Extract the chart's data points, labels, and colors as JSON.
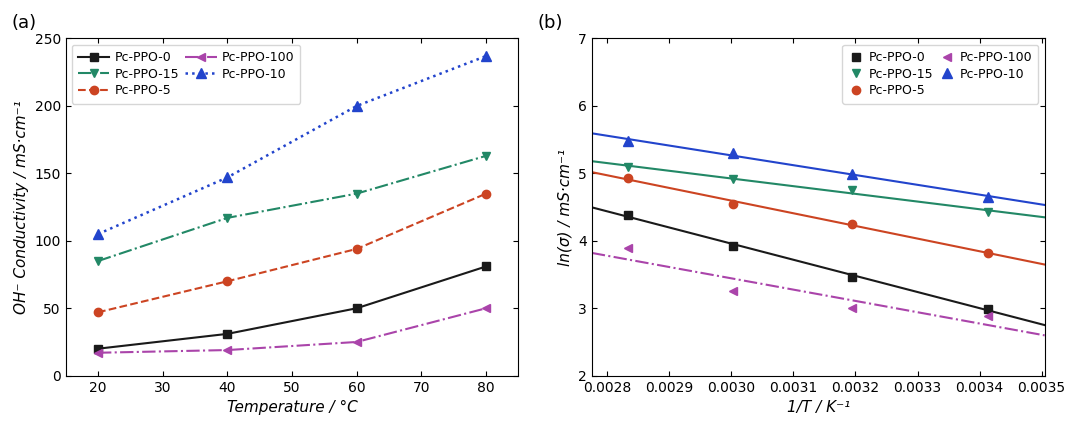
{
  "panel_a": {
    "xlabel": "Temperature / °C",
    "ylabel": "OH⁻ Conductivity / mS·cm⁻¹",
    "xlim": [
      15,
      85
    ],
    "ylim": [
      0,
      250
    ],
    "xticks": [
      20,
      30,
      40,
      50,
      60,
      70,
      80
    ],
    "yticks": [
      0,
      50,
      100,
      150,
      200,
      250
    ],
    "series": [
      {
        "label": "Pc-PPO-0",
        "x": [
          20,
          40,
          60,
          80
        ],
        "y": [
          20,
          31,
          50,
          81
        ],
        "color": "#1a1a1a",
        "linestyle": "-",
        "marker": "s",
        "linewidth": 1.5,
        "markersize": 6
      },
      {
        "label": "Pc-PPO-5",
        "x": [
          20,
          40,
          60,
          80
        ],
        "y": [
          47,
          70,
          94,
          135
        ],
        "color": "#cc4422",
        "linestyle": "--",
        "marker": "o",
        "linewidth": 1.5,
        "markersize": 6
      },
      {
        "label": "Pc-PPO-10",
        "x": [
          20,
          40,
          60,
          80
        ],
        "y": [
          105,
          147,
          200,
          237
        ],
        "color": "#2244cc",
        "linestyle": ":",
        "marker": "^",
        "linewidth": 1.8,
        "markersize": 7
      },
      {
        "label": "Pc-PPO-15",
        "x": [
          20,
          40,
          60,
          80
        ],
        "y": [
          85,
          117,
          135,
          163
        ],
        "color": "#228866",
        "linestyle": "-.",
        "marker": "v",
        "linewidth": 1.5,
        "markersize": 6
      },
      {
        "label": "Pc-PPO-100",
        "x": [
          20,
          40,
          60,
          80
        ],
        "y": [
          17,
          19,
          25,
          50
        ],
        "color": "#aa44aa",
        "linestyle": "-.",
        "marker": "<",
        "linewidth": 1.5,
        "markersize": 6
      }
    ]
  },
  "panel_b": {
    "xlabel": "1/T / K⁻¹",
    "ylabel": "ln(σ) / mS·cm⁻¹",
    "xlim": [
      0.002775,
      0.003505
    ],
    "ylim": [
      2,
      7
    ],
    "xticks": [
      0.0028,
      0.0029,
      0.003,
      0.0031,
      0.0032,
      0.0033,
      0.0034,
      0.0035
    ],
    "yticks": [
      2,
      3,
      4,
      5,
      6,
      7
    ],
    "series": [
      {
        "label": "Pc-PPO-0",
        "x": [
          0.002833,
          0.003003,
          0.003195,
          0.003413
        ],
        "y": [
          4.38,
          3.93,
          3.47,
          2.99
        ],
        "color": "#1a1a1a",
        "marker": "s",
        "markersize": 6,
        "fit_ls": "-",
        "linewidth": 1.5
      },
      {
        "label": "Pc-PPO-5",
        "x": [
          0.002833,
          0.003003,
          0.003195,
          0.003413
        ],
        "y": [
          4.93,
          4.55,
          4.25,
          3.82
        ],
        "color": "#cc4422",
        "marker": "o",
        "markersize": 6,
        "fit_ls": "-",
        "linewidth": 1.5
      },
      {
        "label": "Pc-PPO-10",
        "x": [
          0.002833,
          0.003003,
          0.003195,
          0.003413
        ],
        "y": [
          5.48,
          5.3,
          4.99,
          4.65
        ],
        "color": "#2244cc",
        "marker": "^",
        "markersize": 7,
        "fit_ls": "-",
        "linewidth": 1.5
      },
      {
        "label": "Pc-PPO-15",
        "x": [
          0.002833,
          0.003003,
          0.003195,
          0.003413
        ],
        "y": [
          5.1,
          4.91,
          4.76,
          4.42
        ],
        "color": "#228866",
        "marker": "v",
        "markersize": 6,
        "fit_ls": "-",
        "linewidth": 1.5
      },
      {
        "label": "Pc-PPO-100",
        "x": [
          0.002833,
          0.003003,
          0.003195,
          0.003413
        ],
        "y": [
          3.9,
          3.25,
          3.0,
          2.88
        ],
        "color": "#aa44aa",
        "marker": "<",
        "markersize": 6,
        "fit_ls": "-.",
        "linewidth": 1.5
      }
    ]
  },
  "background_color": "#ffffff",
  "font_size": 10,
  "label_fontsize": 11
}
